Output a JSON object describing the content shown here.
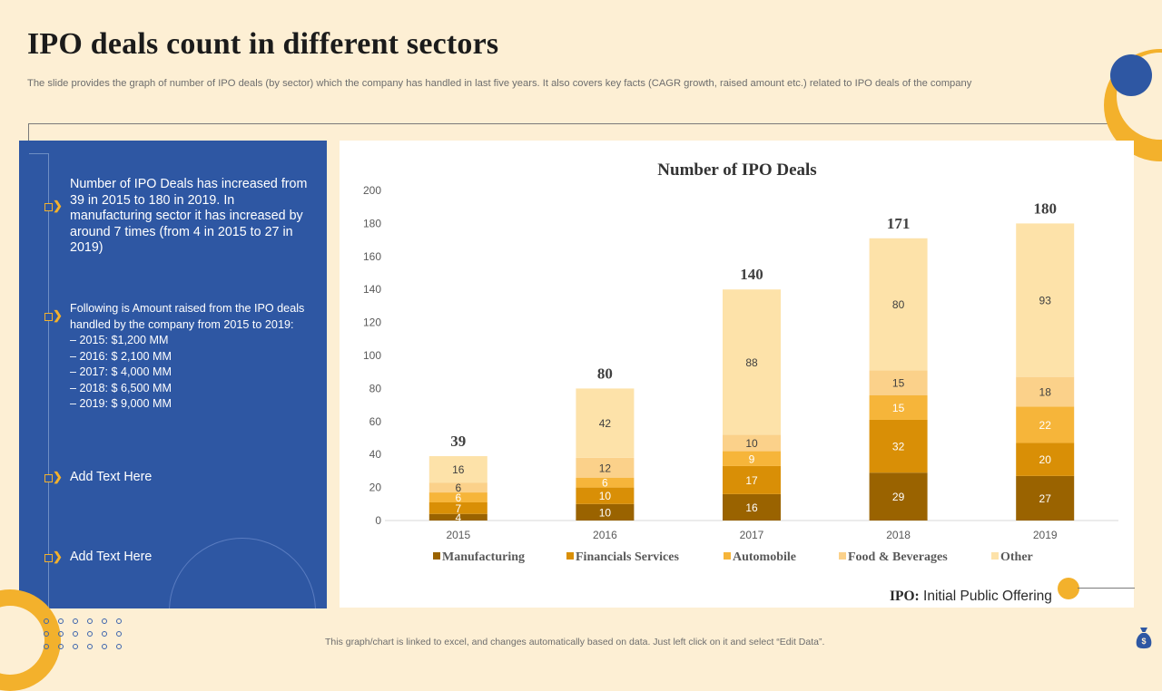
{
  "slide": {
    "title": "IPO deals count in different sectors",
    "subtitle": "The slide provides the graph of number of IPO deals (by sector) which the company has handled in last five years. It also covers key facts (CAGR growth, raised amount etc.) related to IPO deals of the company",
    "footnote": "This graph/chart is linked to excel, and changes automatically based on data. Just left click on it and select “Edit Data”.",
    "ipo_abbr": "IPO:",
    "ipo_full": "Initial Public Offering"
  },
  "panel": {
    "point1": "Number of IPO Deals has increased from 39 in 2015 to 180 in 2019. In manufacturing sector it has increased by around 7 times (from 4 in 2015 to 27 in 2019)",
    "point2_intro": "Following is Amount raised from the IPO deals handled by the company from 2015 to 2019:",
    "amounts": [
      "–   2015: $1,200 MM",
      "–   2016: $ 2,100 MM",
      "–   2017: $ 4,000 MM",
      "–   2018: $ 6,500 MM",
      "–   2019: $ 9,000 MM"
    ],
    "point3": "Add Text Here",
    "point4": "Add Text Here"
  },
  "colors": {
    "background": "#fdefd4",
    "panel": "#2e57a3",
    "accent": "#f3b12c"
  },
  "icons": [
    "chevron-right-icon",
    "moneybag-icon"
  ],
  "chart_data": {
    "type": "bar",
    "stacked": true,
    "title": "Number  of IPO Deals",
    "categories": [
      "2015",
      "2016",
      "2017",
      "2018",
      "2019"
    ],
    "ylim": [
      0,
      200
    ],
    "yticks": [
      0,
      20,
      40,
      60,
      80,
      100,
      120,
      140,
      160,
      180,
      200
    ],
    "grid": false,
    "legend_position": "bottom",
    "totals": [
      39,
      80,
      140,
      171,
      180
    ],
    "series": [
      {
        "name": "Manufacturing",
        "color": "#9a6300",
        "values": [
          4,
          10,
          16,
          29,
          27
        ]
      },
      {
        "name": "Financials Services",
        "color": "#d98f06",
        "values": [
          7,
          10,
          17,
          32,
          20
        ]
      },
      {
        "name": "Automobile",
        "color": "#f6b53a",
        "values": [
          6,
          6,
          9,
          15,
          22
        ]
      },
      {
        "name": "Food & Beverages",
        "color": "#fbd18a",
        "values": [
          6,
          12,
          10,
          15,
          18
        ]
      },
      {
        "name": "Other",
        "color": "#fde2a9",
        "values": [
          16,
          42,
          88,
          80,
          93
        ]
      }
    ]
  }
}
